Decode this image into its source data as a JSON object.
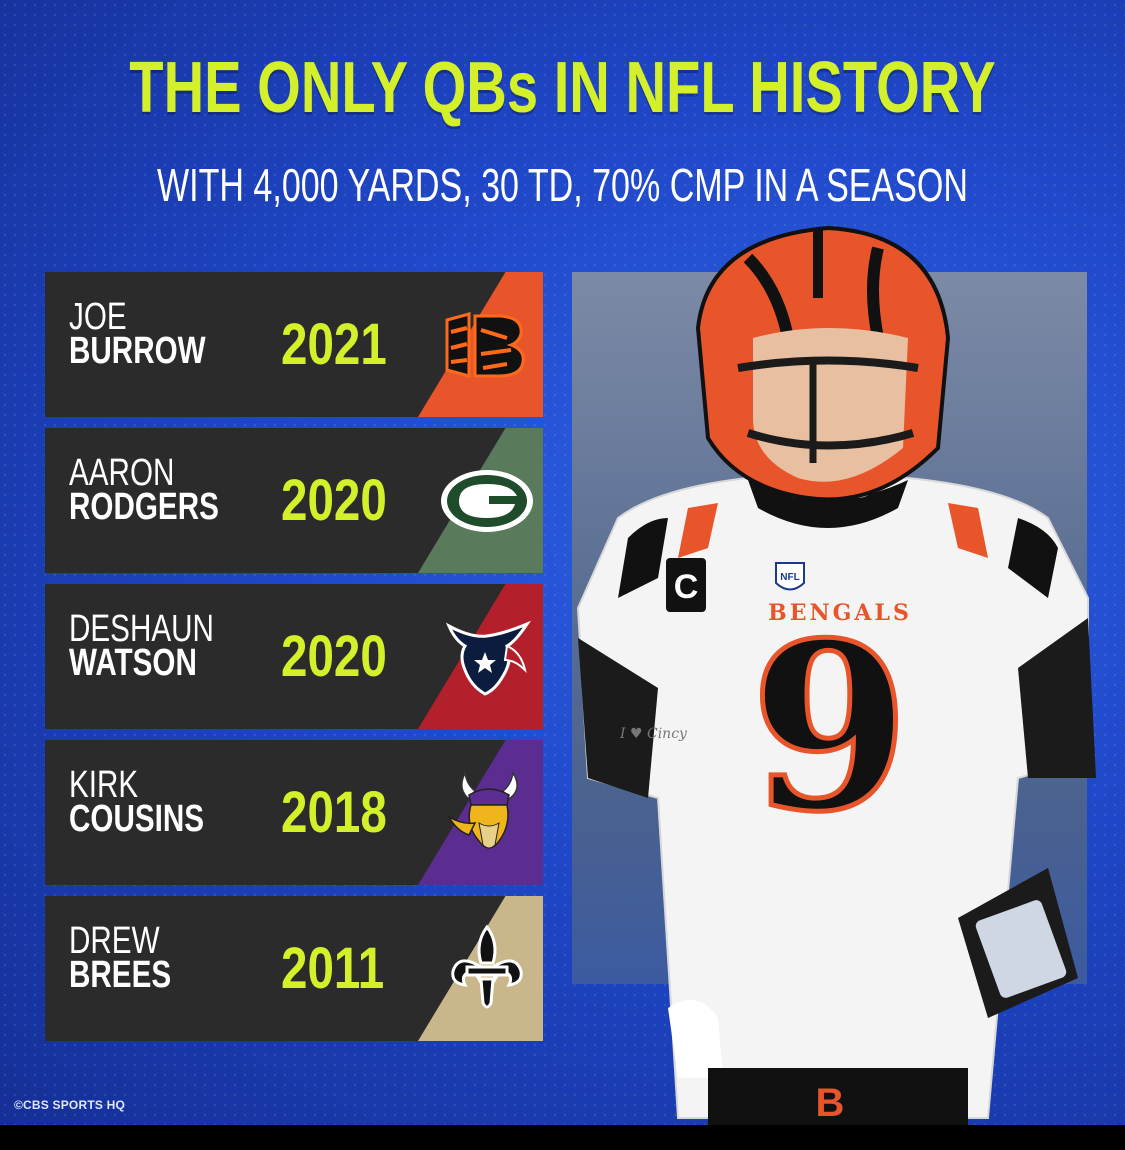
{
  "title": "THE ONLY QBs IN NFL HISTORY",
  "subtitle": "WITH 4,000 YARDS, 30 TD, 70% CMP IN A SEASON",
  "rows": [
    {
      "first": "JOE",
      "last": "BURROW",
      "year": "2021",
      "team_icon": "bengals-logo-icon",
      "stripe_color": "#e8552a"
    },
    {
      "first": "AARON",
      "last": "RODGERS",
      "year": "2020",
      "team_icon": "packers-logo-icon",
      "stripe_color": "#5a7a5c"
    },
    {
      "first": "DESHAUN",
      "last": "WATSON",
      "year": "2020",
      "team_icon": "texans-logo-icon",
      "stripe_color": "#b3202b"
    },
    {
      "first": "KIRK",
      "last": "COUSINS",
      "year": "2018",
      "team_icon": "vikings-logo-icon",
      "stripe_color": "#5b2d90"
    },
    {
      "first": "DREW",
      "last": "BREES",
      "year": "2011",
      "team_icon": "saints-logo-icon",
      "stripe_color": "#c9b68a"
    }
  ],
  "jersey": {
    "brand": "BENGALS",
    "number": "9",
    "captain_patch": "C",
    "league_patch": "NFL",
    "sleeve_text": "I ♥ Cincy"
  },
  "credit": "©CBS SPORTS HQ",
  "colors": {
    "accent": "#d4f02b",
    "background": "#1f47c8",
    "row_bg": "#2b2b2c"
  }
}
